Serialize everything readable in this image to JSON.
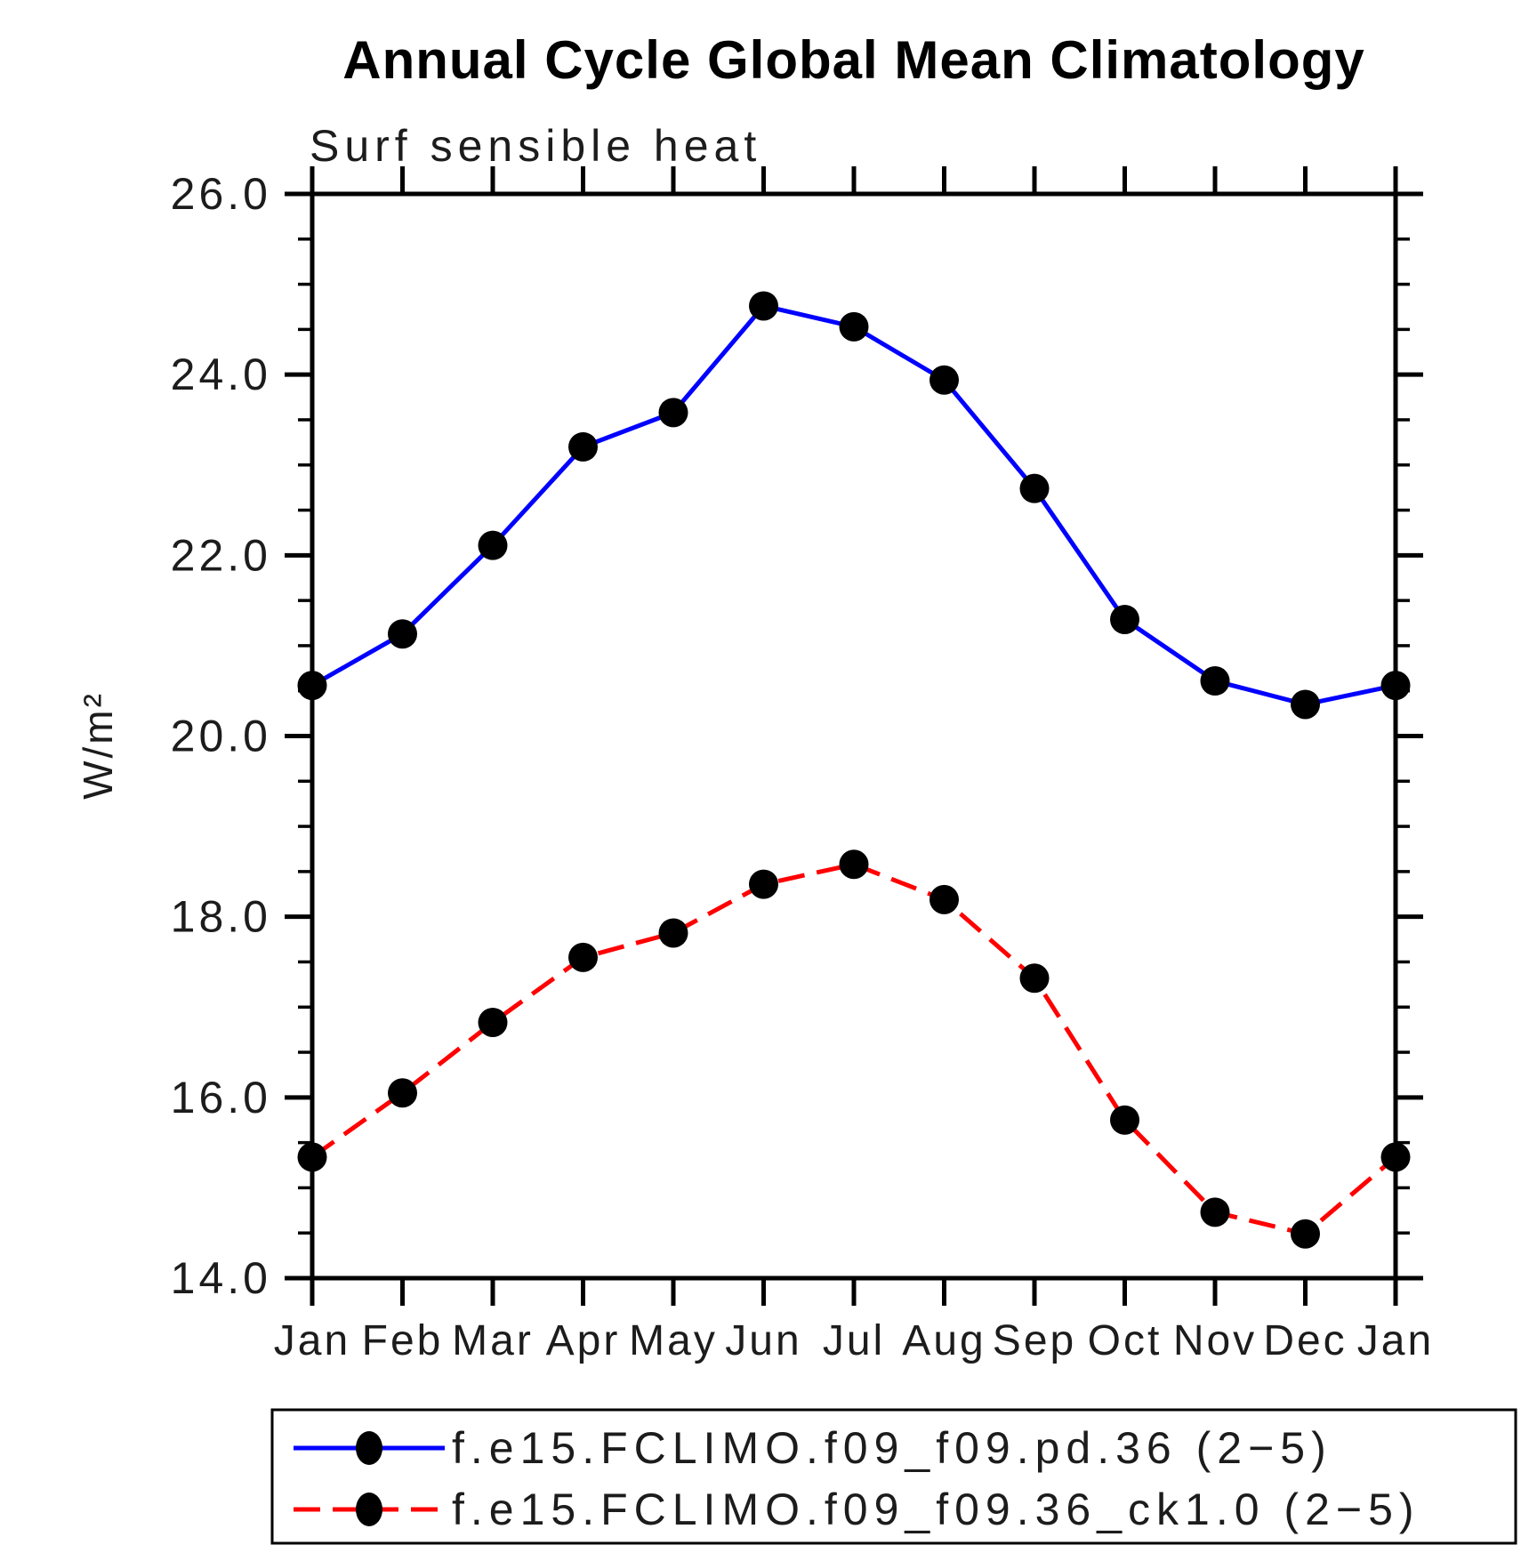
{
  "chart_data": {
    "type": "line",
    "title": "Annual Cycle Global Mean Climatology",
    "subtitle": "Surf sensible heat",
    "ylabel": "W/m²",
    "x_categories": [
      "Jan",
      "Feb",
      "Mar",
      "Apr",
      "May",
      "Jun",
      "Jul",
      "Aug",
      "Sep",
      "Oct",
      "Nov",
      "Dec",
      "Jan"
    ],
    "ylim": [
      14.0,
      26.0
    ],
    "ytick_major": [
      14,
      16,
      18,
      20,
      22,
      24,
      26
    ],
    "ytick_labels": [
      "14.0",
      "16.0",
      "18.0",
      "20.0",
      "22.0",
      "24.0",
      "26.0"
    ],
    "ytick_minor_step": 0.5,
    "grid": false,
    "legend_position": "bottom",
    "marker_color": "#000000",
    "axis_color": "#000000",
    "series": [
      {
        "name": "f.e15.FCLIMO.f09_f09.pd.36 (2−5)",
        "color": "#0000ff",
        "style": "solid",
        "values": [
          20.56,
          21.13,
          22.11,
          23.2,
          23.58,
          24.76,
          24.53,
          23.94,
          22.74,
          21.29,
          20.61,
          20.35,
          20.56
        ]
      },
      {
        "name": "f.e15.FCLIMO.f09_f09.36_ck1.0 (2−5)",
        "color": "#ff0000",
        "style": "dashed",
        "values": [
          15.34,
          16.05,
          16.83,
          17.55,
          17.82,
          18.36,
          18.58,
          18.19,
          17.32,
          15.75,
          14.73,
          14.49,
          15.34
        ]
      }
    ]
  }
}
